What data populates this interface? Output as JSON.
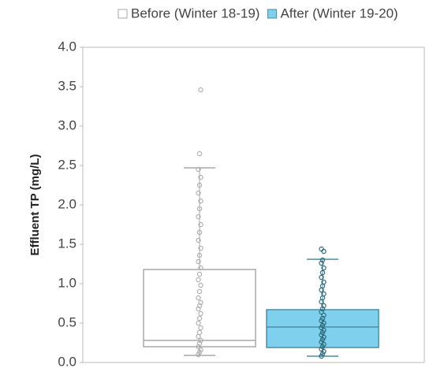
{
  "chart_data": {
    "type": "box",
    "y_label": "Effluent TP (mg/L)",
    "ylim": [
      0,
      4
    ],
    "yticks": [
      {
        "value": 0,
        "label": "0.0"
      },
      0.5,
      {
        "value": 1,
        "label": "1.0"
      },
      1.5,
      {
        "value": 2,
        "label": "2.0"
      },
      2.5,
      {
        "value": 3,
        "label": "3.0"
      },
      3.5,
      {
        "value": 4,
        "label": "4.0"
      }
    ],
    "series": [
      {
        "name": "Before (Winter 18-19)",
        "color": "#ffffff",
        "stroke": "#a8a8a8",
        "point_color": "#b0b0b0",
        "whisker_low": 0.09,
        "q1": 0.2,
        "median": 0.28,
        "q3": 1.18,
        "whisker_high": 2.47,
        "points": [
          0.1,
          0.13,
          0.16,
          0.2,
          0.24,
          0.28,
          0.33,
          0.38,
          0.44,
          0.5,
          0.56,
          0.62,
          0.68,
          0.72,
          0.76,
          0.82,
          0.9,
          0.98,
          1.05,
          1.12,
          1.2,
          1.28,
          1.36,
          1.45,
          1.55,
          1.65,
          1.75,
          1.85,
          1.95,
          2.05,
          2.15,
          2.25,
          2.35,
          2.45,
          2.65,
          3.46
        ]
      },
      {
        "name": "After (Winter 19-20)",
        "color": "#7fd0ec",
        "stroke": "#4a8ea6",
        "point_color": "#2d6b7c",
        "whisker_low": 0.08,
        "q1": 0.19,
        "median": 0.45,
        "q3": 0.67,
        "whisker_high": 1.31,
        "points": [
          0.08,
          0.11,
          0.14,
          0.17,
          0.2,
          0.23,
          0.26,
          0.29,
          0.32,
          0.35,
          0.38,
          0.41,
          0.44,
          0.47,
          0.5,
          0.53,
          0.56,
          0.6,
          0.64,
          0.68,
          0.72,
          0.77,
          0.82,
          0.87,
          0.92,
          0.97,
          1.02,
          1.08,
          1.14,
          1.2,
          1.26,
          1.3,
          1.41,
          1.44
        ]
      }
    ]
  }
}
